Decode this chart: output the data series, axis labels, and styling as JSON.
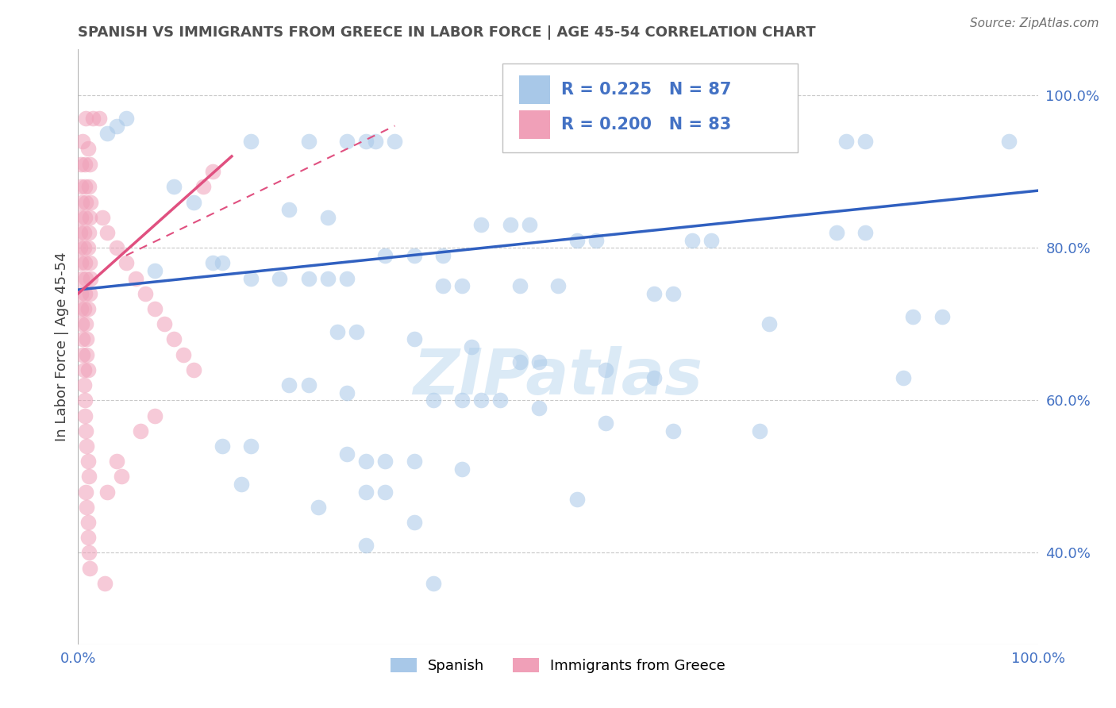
{
  "title": "SPANISH VS IMMIGRANTS FROM GREECE IN LABOR FORCE | AGE 45-54 CORRELATION CHART",
  "source": "Source: ZipAtlas.com",
  "ylabel": "In Labor Force | Age 45-54",
  "xlim": [
    0.0,
    1.0
  ],
  "ylim": [
    0.28,
    1.06
  ],
  "blue_color": "#a8c8e8",
  "pink_color": "#f0a0b8",
  "blue_line_color": "#3060c0",
  "pink_line_color": "#e05080",
  "r_value_color": "#4472c4",
  "title_color": "#505050",
  "watermark_color": "#d8e8f5",
  "blue_scatter": [
    [
      0.03,
      0.95
    ],
    [
      0.04,
      0.96
    ],
    [
      0.05,
      0.97
    ],
    [
      0.18,
      0.94
    ],
    [
      0.24,
      0.94
    ],
    [
      0.28,
      0.94
    ],
    [
      0.3,
      0.94
    ],
    [
      0.31,
      0.94
    ],
    [
      0.33,
      0.94
    ],
    [
      0.56,
      0.94
    ],
    [
      0.6,
      0.94
    ],
    [
      0.62,
      0.94
    ],
    [
      0.72,
      0.94
    ],
    [
      0.8,
      0.94
    ],
    [
      0.82,
      0.94
    ],
    [
      0.97,
      0.94
    ],
    [
      0.1,
      0.88
    ],
    [
      0.12,
      0.86
    ],
    [
      0.22,
      0.85
    ],
    [
      0.26,
      0.84
    ],
    [
      0.42,
      0.83
    ],
    [
      0.45,
      0.83
    ],
    [
      0.47,
      0.83
    ],
    [
      0.52,
      0.81
    ],
    [
      0.54,
      0.81
    ],
    [
      0.64,
      0.81
    ],
    [
      0.66,
      0.81
    ],
    [
      0.79,
      0.82
    ],
    [
      0.82,
      0.82
    ],
    [
      0.32,
      0.79
    ],
    [
      0.35,
      0.79
    ],
    [
      0.38,
      0.79
    ],
    [
      0.14,
      0.78
    ],
    [
      0.15,
      0.78
    ],
    [
      0.08,
      0.77
    ],
    [
      0.18,
      0.76
    ],
    [
      0.21,
      0.76
    ],
    [
      0.24,
      0.76
    ],
    [
      0.26,
      0.76
    ],
    [
      0.28,
      0.76
    ],
    [
      0.38,
      0.75
    ],
    [
      0.4,
      0.75
    ],
    [
      0.46,
      0.75
    ],
    [
      0.5,
      0.75
    ],
    [
      0.6,
      0.74
    ],
    [
      0.62,
      0.74
    ],
    [
      0.72,
      0.7
    ],
    [
      0.27,
      0.69
    ],
    [
      0.29,
      0.69
    ],
    [
      0.35,
      0.68
    ],
    [
      0.41,
      0.67
    ],
    [
      0.46,
      0.65
    ],
    [
      0.48,
      0.65
    ],
    [
      0.55,
      0.64
    ],
    [
      0.6,
      0.63
    ],
    [
      0.22,
      0.62
    ],
    [
      0.24,
      0.62
    ],
    [
      0.28,
      0.61
    ],
    [
      0.37,
      0.6
    ],
    [
      0.4,
      0.6
    ],
    [
      0.42,
      0.6
    ],
    [
      0.44,
      0.6
    ],
    [
      0.48,
      0.59
    ],
    [
      0.55,
      0.57
    ],
    [
      0.62,
      0.56
    ],
    [
      0.71,
      0.56
    ],
    [
      0.15,
      0.54
    ],
    [
      0.18,
      0.54
    ],
    [
      0.28,
      0.53
    ],
    [
      0.3,
      0.52
    ],
    [
      0.32,
      0.52
    ],
    [
      0.35,
      0.52
    ],
    [
      0.4,
      0.51
    ],
    [
      0.17,
      0.49
    ],
    [
      0.3,
      0.48
    ],
    [
      0.32,
      0.48
    ],
    [
      0.25,
      0.46
    ],
    [
      0.35,
      0.44
    ],
    [
      0.3,
      0.41
    ],
    [
      0.37,
      0.36
    ],
    [
      0.52,
      0.47
    ],
    [
      0.87,
      0.71
    ],
    [
      0.9,
      0.71
    ],
    [
      0.86,
      0.63
    ]
  ],
  "pink_scatter": [
    [
      0.008,
      0.97
    ],
    [
      0.015,
      0.97
    ],
    [
      0.022,
      0.97
    ],
    [
      0.005,
      0.94
    ],
    [
      0.01,
      0.93
    ],
    [
      0.003,
      0.91
    ],
    [
      0.007,
      0.91
    ],
    [
      0.012,
      0.91
    ],
    [
      0.003,
      0.88
    ],
    [
      0.007,
      0.88
    ],
    [
      0.011,
      0.88
    ],
    [
      0.004,
      0.86
    ],
    [
      0.008,
      0.86
    ],
    [
      0.013,
      0.86
    ],
    [
      0.003,
      0.84
    ],
    [
      0.007,
      0.84
    ],
    [
      0.012,
      0.84
    ],
    [
      0.002,
      0.82
    ],
    [
      0.006,
      0.82
    ],
    [
      0.011,
      0.82
    ],
    [
      0.002,
      0.8
    ],
    [
      0.006,
      0.8
    ],
    [
      0.01,
      0.8
    ],
    [
      0.003,
      0.78
    ],
    [
      0.007,
      0.78
    ],
    [
      0.012,
      0.78
    ],
    [
      0.004,
      0.76
    ],
    [
      0.008,
      0.76
    ],
    [
      0.013,
      0.76
    ],
    [
      0.003,
      0.74
    ],
    [
      0.007,
      0.74
    ],
    [
      0.012,
      0.74
    ],
    [
      0.003,
      0.72
    ],
    [
      0.006,
      0.72
    ],
    [
      0.01,
      0.72
    ],
    [
      0.004,
      0.7
    ],
    [
      0.008,
      0.7
    ],
    [
      0.005,
      0.68
    ],
    [
      0.009,
      0.68
    ],
    [
      0.005,
      0.66
    ],
    [
      0.009,
      0.66
    ],
    [
      0.006,
      0.64
    ],
    [
      0.01,
      0.64
    ],
    [
      0.006,
      0.62
    ],
    [
      0.007,
      0.6
    ],
    [
      0.007,
      0.58
    ],
    [
      0.008,
      0.56
    ],
    [
      0.009,
      0.54
    ],
    [
      0.01,
      0.52
    ],
    [
      0.011,
      0.5
    ],
    [
      0.008,
      0.48
    ],
    [
      0.009,
      0.46
    ],
    [
      0.01,
      0.44
    ],
    [
      0.01,
      0.42
    ],
    [
      0.011,
      0.4
    ],
    [
      0.012,
      0.38
    ],
    [
      0.025,
      0.84
    ],
    [
      0.03,
      0.82
    ],
    [
      0.04,
      0.8
    ],
    [
      0.05,
      0.78
    ],
    [
      0.06,
      0.76
    ],
    [
      0.07,
      0.74
    ],
    [
      0.08,
      0.72
    ],
    [
      0.09,
      0.7
    ],
    [
      0.1,
      0.68
    ],
    [
      0.11,
      0.66
    ],
    [
      0.12,
      0.64
    ],
    [
      0.13,
      0.88
    ],
    [
      0.14,
      0.9
    ],
    [
      0.08,
      0.58
    ],
    [
      0.065,
      0.56
    ],
    [
      0.04,
      0.52
    ],
    [
      0.045,
      0.5
    ],
    [
      0.03,
      0.48
    ],
    [
      0.028,
      0.36
    ]
  ],
  "blue_trend_x": [
    0.0,
    1.0
  ],
  "blue_trend_y": [
    0.745,
    0.875
  ],
  "pink_trend_x": [
    0.0,
    0.16
  ],
  "pink_trend_y": [
    0.74,
    0.92
  ]
}
